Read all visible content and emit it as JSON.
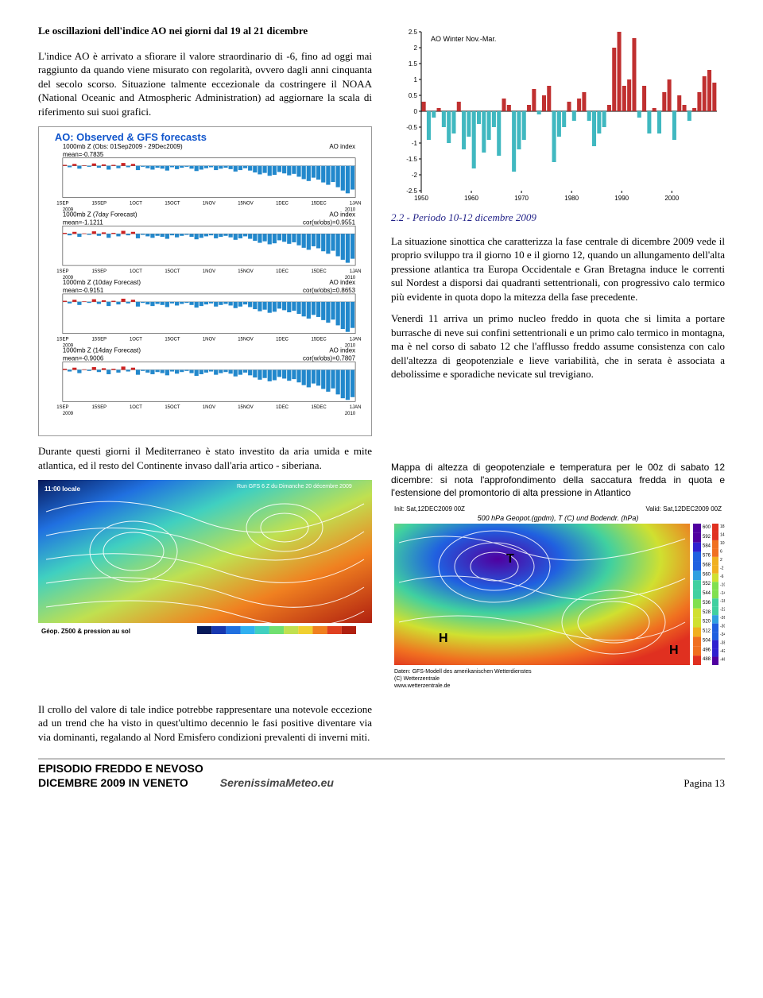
{
  "left": {
    "heading": "Le oscillazioni dell'indice AO nei giorni dal 19 al 21 dicembre",
    "p1": "L'indice AO è arrivato a sfiorare il valore straordinario di -6, fino ad oggi mai raggiunto da quando viene misurato con regolarità, ovvero dagli anni cinquanta del secolo scorso. Situazione talmente eccezionale da costringere il NOAA (National Oceanic and Atmospheric Administration) ad aggiornare la scala di riferimento sui suoi grafici.",
    "forecast_chart": {
      "title": "AO: Observed & GFS forecasts",
      "title_color": "#1055cc",
      "panels": [
        {
          "label1": "1000mb Z (Obs: 01Sep2009 - 29Dec2009)",
          "label2": "AO index",
          "mean": "mean=-0.7835",
          "cor": ""
        },
        {
          "label1": "1000mb Z (7day Forecast)",
          "label2": "AO index",
          "mean": "mean=-1.1211",
          "cor": "cor(w/obs)=0.9551"
        },
        {
          "label1": "1000mb Z (10day Forecast)",
          "label2": "AO index",
          "mean": "mean=-0.9151",
          "cor": "cor(w/obs)=0.8653"
        },
        {
          "label1": "1000mb Z (14day Forecast)",
          "label2": "AO index",
          "mean": "mean=-0.9006",
          "cor": "cor(w/obs)=0.7807"
        }
      ],
      "bar_color_pos": "#cc2222",
      "bar_color_neg": "#2288cc",
      "xticks": [
        "1SEP",
        "15SEP",
        "1OCT",
        "15OCT",
        "1NOV",
        "15NOV",
        "1DEC",
        "15DEC",
        "1JAN"
      ],
      "year_left": "2009",
      "year_right": "2010",
      "border_color": "#333333",
      "background_color": "#ffffff"
    },
    "p2": "Durante questi giorni il Mediterraneo è stato investito da aria umida e mite atlantica, ed il resto del Continente invaso dall'aria artico - siberiana.",
    "synoptic_map": {
      "colors": [
        "#081a5a",
        "#1838b0",
        "#2070e0",
        "#30b0f0",
        "#40d0c0",
        "#70e070",
        "#c0e050",
        "#f0d030",
        "#f08020",
        "#e04020",
        "#b02010"
      ],
      "contour_color": "#ffffff",
      "background_color": "#ffffff",
      "footer_left": "Géop. Z500 & pression au sol",
      "footer_right": "Run GFS 6 Z du Dimanche 20 décembre 2009",
      "time_label": "11:00 locale"
    },
    "p3": "Il crollo del valore di tale indice potrebbe rappresentare una notevole eccezione ad un trend che ha visto in quest'ultimo decennio le fasi positive diventare via via dominanti, regalando al Nord Emisfero condizioni prevalenti di inverni miti."
  },
  "right": {
    "winter_chart": {
      "title": "AO Winter Nov.-Mar.",
      "title_fontsize": 9,
      "ylim": [
        -2.5,
        2.5
      ],
      "ytick_step": 0.5,
      "xticks": [
        "1950",
        "1960",
        "1970",
        "1980",
        "1990",
        "2000"
      ],
      "bar_color_pos": "#c03030",
      "bar_color_neg": "#40b8c0",
      "axis_color": "#000000",
      "grid_color": "#e0e0e0",
      "background_color": "#ffffff",
      "values": [
        0.3,
        -0.9,
        -0.2,
        0.1,
        -0.5,
        -1.0,
        -0.7,
        0.3,
        -1.2,
        -0.8,
        -1.8,
        -0.4,
        -1.3,
        -0.9,
        -0.5,
        -1.4,
        0.4,
        0.2,
        -1.9,
        -1.2,
        -0.9,
        0.2,
        0.7,
        -0.1,
        0.5,
        0.8,
        -1.6,
        -0.8,
        -0.5,
        0.3,
        -0.3,
        0.4,
        0.6,
        -0.3,
        -1.1,
        -0.7,
        -0.5,
        0.2,
        2.0,
        2.5,
        0.8,
        1.0,
        2.3,
        -0.2,
        0.8,
        -0.7,
        0.1,
        -0.7,
        0.6,
        1.0,
        -0.9,
        0.5,
        0.2,
        -0.3,
        0.1,
        0.6,
        1.1,
        1.3,
        0.9
      ]
    },
    "section_title": "2.2 - Periodo 10-12 dicembre 2009",
    "p1": "La situazione sinottica che caratterizza la fase centrale di dicembre 2009 vede il proprio sviluppo tra il giorno 10 e il giorno 12, quando un allungamento dell'alta pressione atlantica tra Europa Occidentale e Gran Bretagna induce le correnti sul Nordest a disporsi dai quadranti settentrionali, con progressivo calo termico più evidente in quota dopo la mitezza della fase precedente.",
    "p2": "Venerdì 11 arriva un primo nucleo freddo in quota che si limita a portare burrasche di neve sui confini settentrionali e un primo calo termico in montagna, ma è nel corso di sabato 12 che l'afflusso freddo assume consistenza con calo dell'altezza di geopotenziale e lieve variabilità, che in serata è associata a debolissime e sporadiche nevicate sul trevigiano.",
    "caption": "Mappa di altezza di geopotenziale e temperatura per le 00z di sabato 12 dicembre: si nota l'approfondimento della saccatura fredda in quota e l'estensione del promontorio di alta pressione in Atlantico",
    "geo_map": {
      "header_left": "Init: Sat,12DEC2009 00Z",
      "header_right": "Valid: Sat,12DEC2009 00Z",
      "title": "500 hPa Geopot.(gpdm), T (C) und Bodendr. (hPa)",
      "footer1": "Daten: GFS-Modell des amerikanischen Wetterdienstes",
      "footer2": "(C) Wetterzentrale",
      "footer3": "www.wetterzentrale.de",
      "fill_colors": [
        "#5000a0",
        "#3020d0",
        "#2060e0",
        "#30a0e0",
        "#40d0a0",
        "#80e050",
        "#d0e030",
        "#f0b020",
        "#f07020",
        "#e03020"
      ],
      "contour_color": "#ffffff",
      "legend_values": [
        "600",
        "592",
        "584",
        "576",
        "568",
        "560",
        "552",
        "544",
        "536",
        "528",
        "520",
        "512",
        "504",
        "496",
        "488"
      ],
      "legend2_values": [
        "18",
        "14",
        "10",
        "6",
        "2",
        "-2",
        "-6",
        "-10",
        "-14",
        "-18",
        "-22",
        "-26",
        "-30",
        "-34",
        "-38",
        "-42",
        "-46"
      ],
      "h_label": "H",
      "t_label": "T",
      "background_color": "#ffffff"
    }
  },
  "footer": {
    "line1": "EPISODIO FREDDO E NEVOSO",
    "line2": "DICEMBRE 2009 IN VENETO",
    "mid": "SerenissimaMeteo.eu",
    "right": "Pagina 13"
  }
}
